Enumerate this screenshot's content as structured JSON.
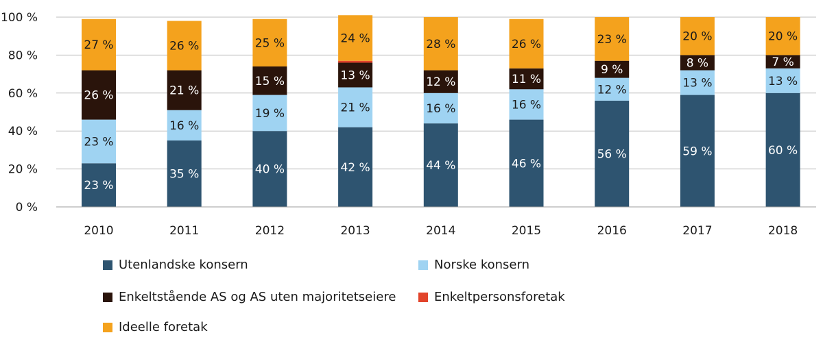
{
  "chart_data": {
    "type": "bar",
    "stacked": true,
    "categories": [
      "2010",
      "2011",
      "2012",
      "2013",
      "2014",
      "2015",
      "2016",
      "2017",
      "2018"
    ],
    "series": [
      {
        "name": "Utenlandske konsern",
        "color": "#2e5470",
        "values": [
          23,
          35,
          40,
          42,
          44,
          46,
          56,
          59,
          60
        ],
        "labels": [
          "23 %",
          "35 %",
          "40 %",
          "42 %",
          "44 %",
          "46 %",
          "56 %",
          "59 %",
          "60 %"
        ],
        "label_color": "#ffffff"
      },
      {
        "name": "Norske konsern",
        "color": "#9fd3f2",
        "values": [
          23,
          16,
          19,
          21,
          16,
          16,
          12,
          13,
          13
        ],
        "labels": [
          "23 %",
          "16 %",
          "19 %",
          "21 %",
          "16 %",
          "16 %",
          "12 %",
          "13 %",
          "13 %"
        ],
        "label_color": "#1a1a1a"
      },
      {
        "name": "Enkeltstående AS og AS uten majoritetseiere",
        "color": "#2a140b",
        "values": [
          26,
          21,
          15,
          13,
          12,
          11,
          9,
          8,
          7
        ],
        "labels": [
          "26 %",
          "21 %",
          "15 %",
          "13 %",
          "12 %",
          "11 %",
          "9 %",
          "8 %",
          "7 %"
        ],
        "label_color": "#ffffff"
      },
      {
        "name": "Enkeltpersonsforetak",
        "color": "#e2442b",
        "values": [
          0,
          0,
          0,
          1,
          0,
          0,
          0,
          0,
          0
        ],
        "labels": [
          "",
          "",
          "",
          "",
          "",
          "",
          "",
          "",
          ""
        ],
        "label_color": "#ffffff"
      },
      {
        "name": "Ideelle foretak",
        "color": "#f4a21d",
        "values": [
          27,
          26,
          25,
          24,
          28,
          26,
          23,
          20,
          20
        ],
        "labels": [
          "27 %",
          "26 %",
          "25 %",
          "24 %",
          "28 %",
          "26 %",
          "23 %",
          "20 %",
          "20 %"
        ],
        "label_color": "#1a1a1a"
      }
    ],
    "ylim": [
      0,
      100
    ],
    "yticks": [
      0,
      20,
      40,
      60,
      80,
      100
    ],
    "ytick_labels": [
      "0 %",
      "20 %",
      "40 %",
      "60 %",
      "80 %",
      "100 %"
    ],
    "legend_position": "bottom-left",
    "grid": true
  }
}
